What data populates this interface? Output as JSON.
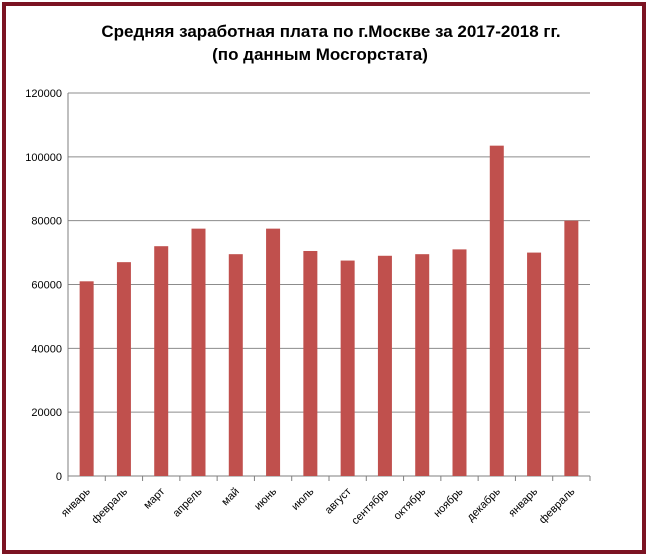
{
  "chart_data": {
    "type": "bar",
    "title": "Средняя заработная плата по г.Москве за 2017-2018 гг.",
    "subtitle": "(по данным Мосгорстата)",
    "xlabel": "",
    "ylabel": "",
    "categories": [
      "январь",
      "февраль",
      "март",
      "апрель",
      "май",
      "июнь",
      "июль",
      "август",
      "сентябрь",
      "октябрь",
      "ноябрь",
      "декабрь",
      "январь",
      "февраль"
    ],
    "values": [
      61000,
      67000,
      72000,
      77500,
      69500,
      77500,
      70500,
      67500,
      69000,
      69500,
      71000,
      103500,
      70000,
      80000
    ],
    "ylim": [
      0,
      120000
    ],
    "yticks": [
      "0",
      "20000",
      "40000",
      "60000",
      "80000",
      "100000",
      "120000"
    ],
    "grid": true,
    "legend": "none",
    "bar_color": "#c0504d",
    "frame_color": "#7b1322"
  }
}
